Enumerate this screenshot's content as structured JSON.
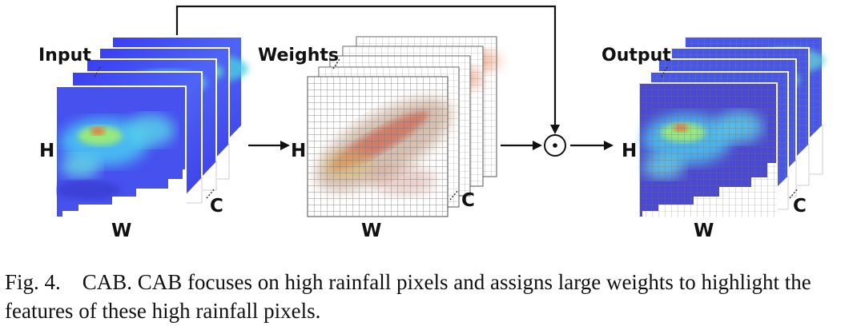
{
  "figure": {
    "labels": {
      "input": "Input",
      "weights": "Weights",
      "output": "Output",
      "height": "H",
      "width": "W",
      "channels": "C"
    },
    "operator_symbol": "⊙"
  },
  "caption": {
    "label": "Fig. 4.",
    "text": "CAB. CAB focuses on high rainfall pixels and assigns large weights to highlight the features of these high rainfall pixels."
  }
}
